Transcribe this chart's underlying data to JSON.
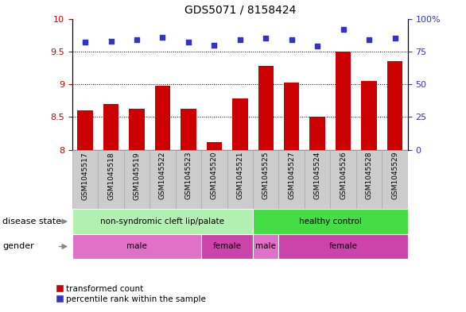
{
  "title": "GDS5071 / 8158424",
  "samples": [
    "GSM1045517",
    "GSM1045518",
    "GSM1045519",
    "GSM1045522",
    "GSM1045523",
    "GSM1045520",
    "GSM1045521",
    "GSM1045525",
    "GSM1045527",
    "GSM1045524",
    "GSM1045526",
    "GSM1045528",
    "GSM1045529"
  ],
  "bar_values": [
    8.6,
    8.7,
    8.63,
    8.98,
    8.63,
    8.12,
    8.78,
    9.28,
    9.02,
    8.5,
    9.5,
    9.05,
    9.35
  ],
  "dot_values": [
    82,
    83,
    84,
    86,
    82,
    80,
    84,
    85,
    84,
    79,
    92,
    84,
    85
  ],
  "bar_color": "#cc0000",
  "dot_color": "#3333cc",
  "ylim_left": [
    8,
    10
  ],
  "ylim_right": [
    0,
    100
  ],
  "yticks_left": [
    8,
    8.5,
    9,
    9.5,
    10
  ],
  "yticks_right": [
    0,
    25,
    50,
    75,
    100
  ],
  "yticklabels_right": [
    "0",
    "25",
    "50",
    "75",
    "100%"
  ],
  "grid_values": [
    8.5,
    9.0,
    9.5
  ],
  "disease_state_groups": [
    {
      "label": "non-syndromic cleft lip/palate",
      "start": 0,
      "end": 7,
      "color": "#b2f0b2"
    },
    {
      "label": "healthy control",
      "start": 7,
      "end": 13,
      "color": "#44dd44"
    }
  ],
  "gender_groups": [
    {
      "label": "male",
      "start": 0,
      "end": 5,
      "color": "#e070c8"
    },
    {
      "label": "female",
      "start": 5,
      "end": 7,
      "color": "#cc44aa"
    },
    {
      "label": "male",
      "start": 7,
      "end": 8,
      "color": "#e070c8"
    },
    {
      "label": "female",
      "start": 8,
      "end": 13,
      "color": "#cc44aa"
    }
  ],
  "legend_bar_label": "transformed count",
  "legend_dot_label": "percentile rank within the sample",
  "disease_state_label": "disease state",
  "gender_label": "gender",
  "tick_label_color_left": "#cc0000",
  "tick_label_color_right": "#3333cc",
  "xtick_bg_color": "#cccccc",
  "xtick_border_color": "#aaaaaa"
}
